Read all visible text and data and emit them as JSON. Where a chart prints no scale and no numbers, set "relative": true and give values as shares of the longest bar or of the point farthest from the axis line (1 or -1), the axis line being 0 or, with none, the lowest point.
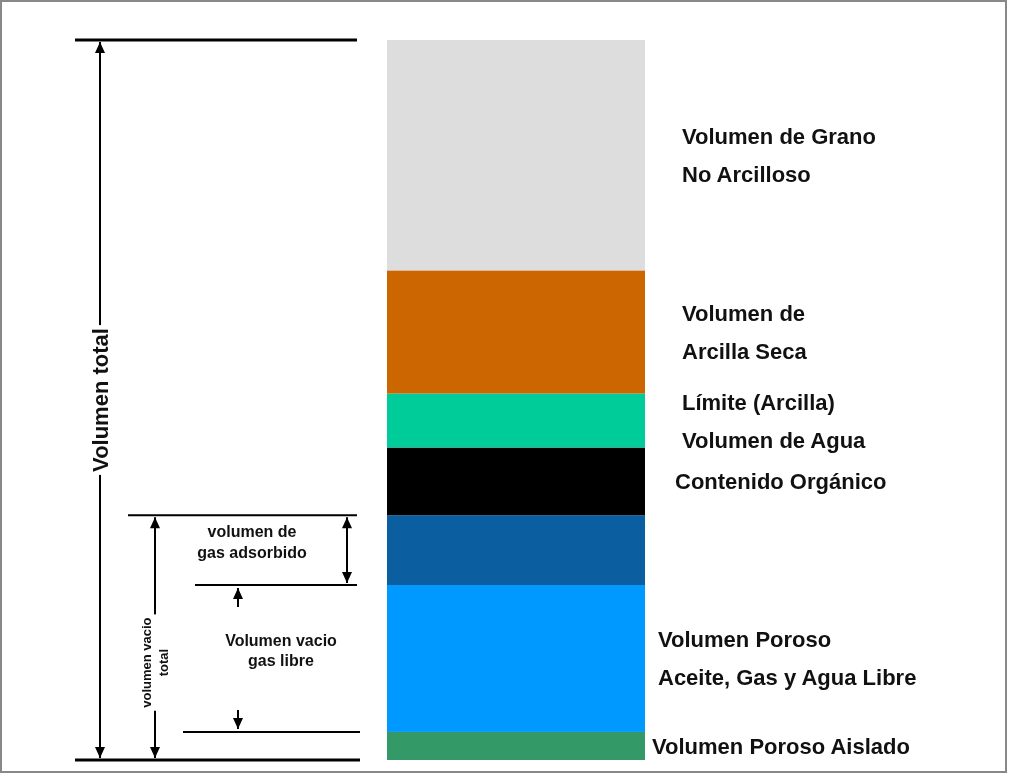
{
  "chart_data": {
    "type": "bar",
    "relative": true,
    "stacked": true,
    "categories": [
      null
    ],
    "series": [
      {
        "name": "Volumen Poroso Aislado",
        "color": "#339966",
        "values": [
          0.039
        ]
      },
      {
        "name": "Volumen Poroso\nAceite, Gas y Agua Libre",
        "color": "#0099ff",
        "values": [
          0.204
        ]
      },
      {
        "color": "#0b5fa0",
        "values": [
          0.097
        ]
      },
      {
        "name": "Contenido Orgánico",
        "color": "#000000",
        "values": [
          0.094
        ]
      },
      {
        "name": "Límite (Arcilla)\nVolumen de Agua",
        "color": "#00cc99",
        "values": [
          0.075
        ]
      },
      {
        "name": "Volumen de\nArcilla Seca",
        "color": "#cc6600",
        "values": [
          0.171
        ]
      },
      {
        "name": "Volumen de Grano\nNo Arcilloso",
        "color": "#dddddd",
        "values": [
          0.32
        ]
      }
    ],
    "annotations": [
      "Volumen total",
      "volumen vacio\ntotal",
      "Volumen vacio\ngas libre",
      "volumen de\ngas adsorbido"
    ]
  }
}
